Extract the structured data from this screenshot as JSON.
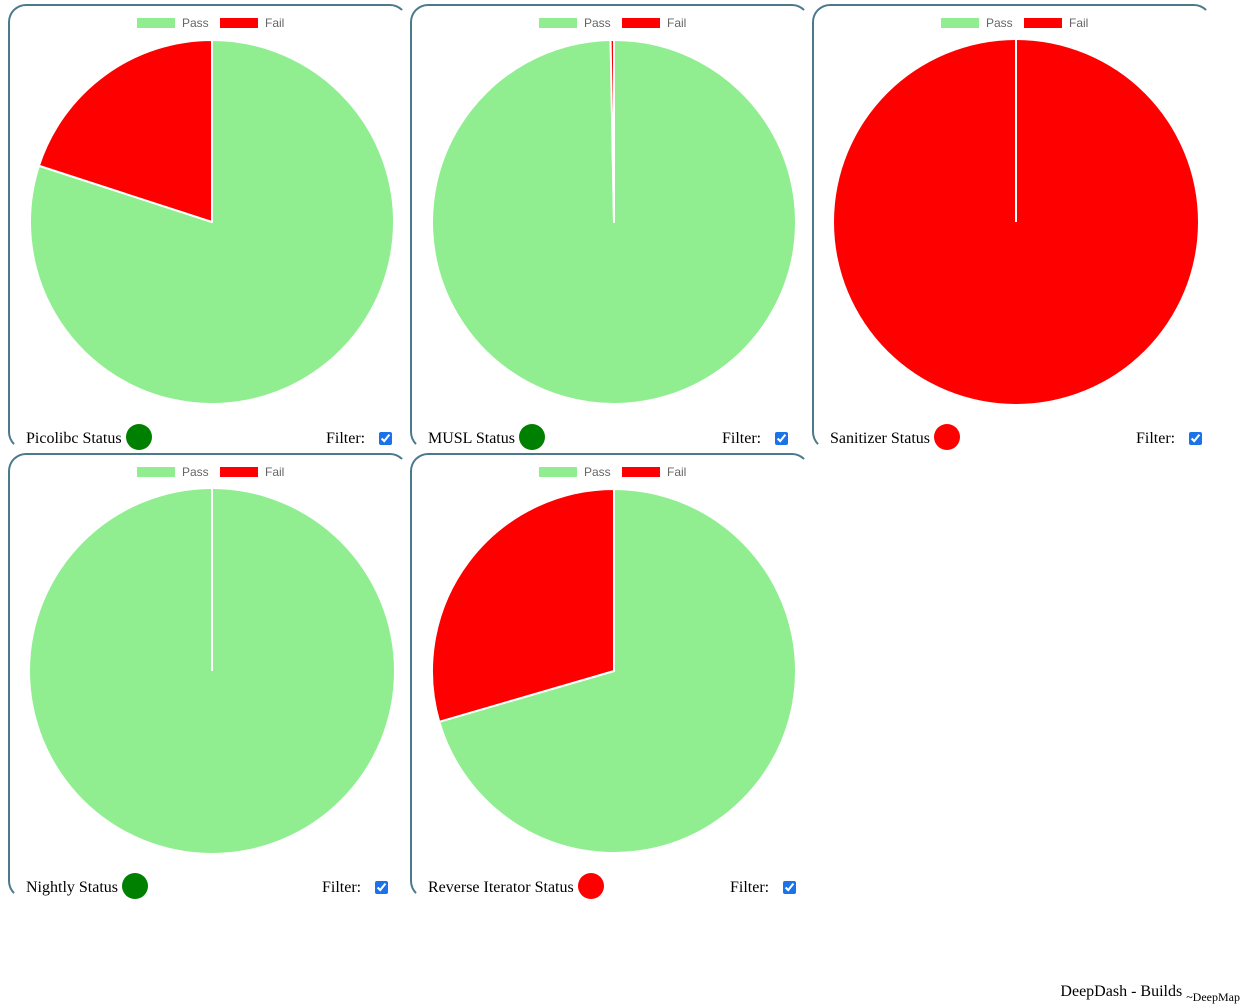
{
  "footer": {
    "title": "DeepDash - Builds",
    "subtitle": "~DeepMap"
  },
  "colors": {
    "pass": "#90ee90",
    "fail": "#ff0000",
    "ok": "#008000",
    "bad": "#ff0000"
  },
  "filter_label": "Filter:",
  "chart_data": [
    {
      "type": "pie",
      "labels": [
        "Pass",
        "Fail"
      ],
      "values": [
        80,
        20
      ],
      "colors": [
        "#90ee90",
        "#ff0000"
      ],
      "legend": "top",
      "status_label": "Picolibc Status",
      "status_color": "#008000",
      "filter_checked": true
    },
    {
      "type": "pie",
      "labels": [
        "Pass",
        "Fail"
      ],
      "values": [
        99.7,
        0.3
      ],
      "colors": [
        "#90ee90",
        "#ff0000"
      ],
      "legend": "top",
      "status_label": "MUSL Status",
      "status_color": "#008000",
      "filter_checked": true
    },
    {
      "type": "pie",
      "labels": [
        "Pass",
        "Fail"
      ],
      "values": [
        0,
        100
      ],
      "colors": [
        "#90ee90",
        "#ff0000"
      ],
      "legend": "top",
      "status_label": "Sanitizer Status",
      "status_color": "#ff0000",
      "filter_checked": true
    },
    {
      "type": "pie",
      "labels": [
        "Pass",
        "Fail"
      ],
      "values": [
        100,
        0
      ],
      "colors": [
        "#90ee90",
        "#ff0000"
      ],
      "legend": "top",
      "status_label": "Nightly Status",
      "status_color": "#008000",
      "filter_checked": true
    },
    {
      "type": "pie",
      "labels": [
        "Pass",
        "Fail"
      ],
      "values": [
        70.5,
        29.5
      ],
      "colors": [
        "#90ee90",
        "#ff0000"
      ],
      "legend": "top",
      "status_label": "Reverse Iterator Status",
      "status_color": "#ff0000",
      "filter_checked": true
    }
  ]
}
